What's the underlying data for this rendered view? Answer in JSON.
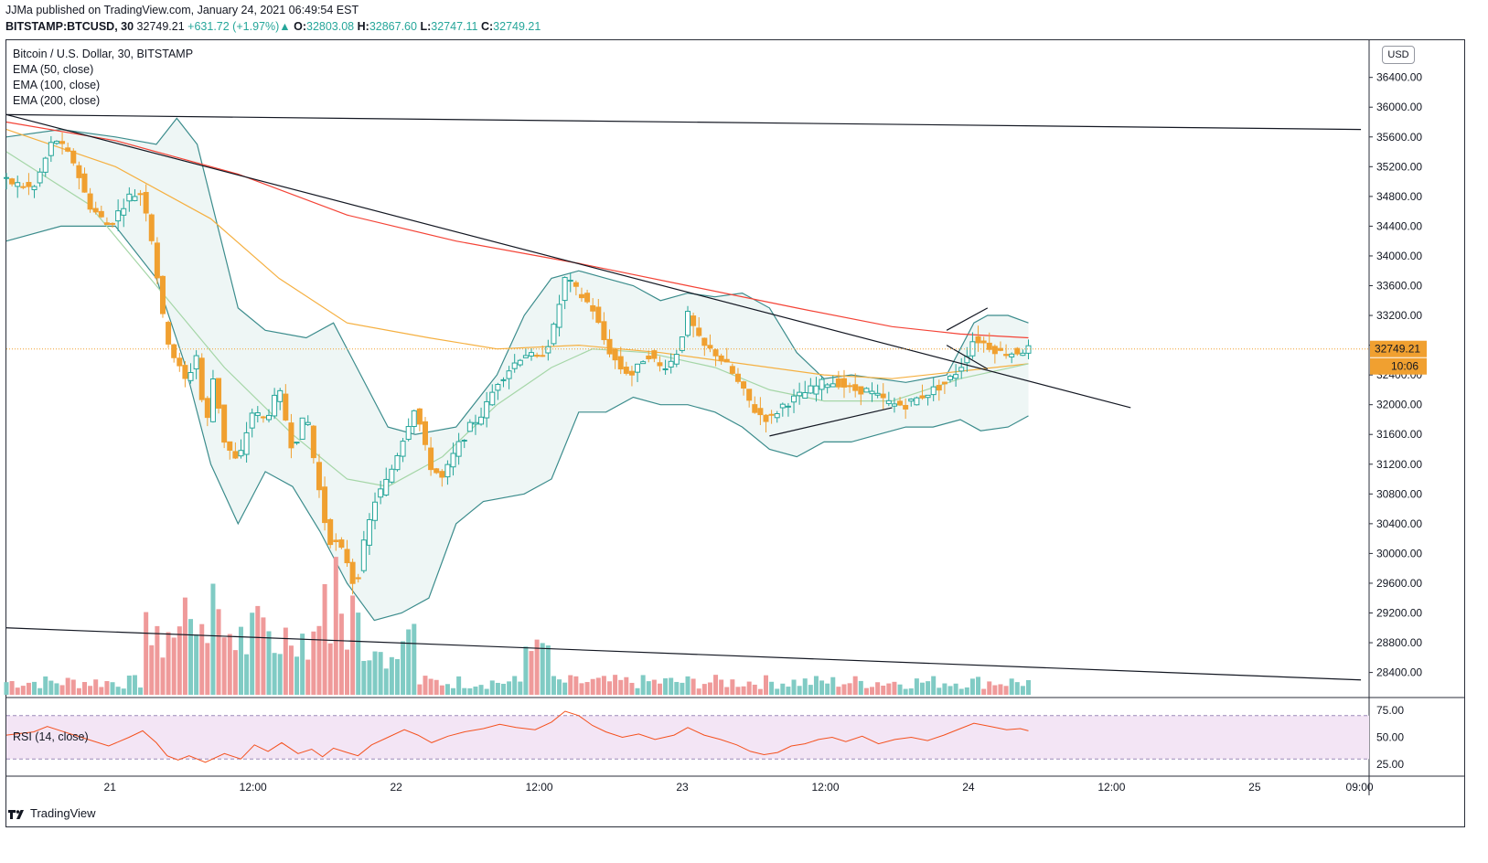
{
  "header": {
    "published": "JJMa published on TradingView.com, January 24, 2021 06:49:54 EST",
    "symbol": "BITSTAMP:BTCUSD, 30",
    "last": "32749.21",
    "change": "+631.72 (+1.97%)",
    "o_label": "O:",
    "o": "32803.08",
    "h_label": "H:",
    "h": "32867.60",
    "l_label": "L:",
    "l": "32747.11",
    "c_label": "C:",
    "c": "32749.21"
  },
  "legend": {
    "title": "Bitcoin / U.S. Dollar, 30, BITSTAMP",
    "ema50": "EMA (50, close)",
    "ema100": "EMA (100, close)",
    "ema200": "EMA (200, close)",
    "rsi": "RSI (14, close)"
  },
  "currency": "USD",
  "price_tag": "32749.21",
  "countdown": "10:06",
  "footer": {
    "brand": "TradingView"
  },
  "colors": {
    "bull": "#26a69a",
    "bear": "#f0a030",
    "ema200": "#f44336",
    "ema100": "#f5b041",
    "ema50": "#a5d6a7",
    "bands": "#3b8c8c",
    "rsi_line": "#f4511e",
    "rsi_fill": "#f3e5f5"
  },
  "chart_data": {
    "type": "candlestick",
    "symbol": "BITSTAMP:BTCUSD",
    "interval": "30",
    "y_ticks": [
      "36400.00",
      "36000.00",
      "35600.00",
      "35200.00",
      "34800.00",
      "34400.00",
      "34000.00",
      "33600.00",
      "33200.00",
      "32800.00",
      "32400.00",
      "32000.00",
      "31600.00",
      "31200.00",
      "30800.00",
      "30400.00",
      "30000.00",
      "29600.00",
      "29200.00",
      "28800.00",
      "28400.00"
    ],
    "ylim": [
      28100,
      36900
    ],
    "x_ticks": [
      {
        "label": "21",
        "t": 0.076
      },
      {
        "label": "12:00",
        "t": 0.181
      },
      {
        "label": "22",
        "t": 0.286
      },
      {
        "label": "12:00",
        "t": 0.391
      },
      {
        "label": "23",
        "t": 0.496
      },
      {
        "label": "12:00",
        "t": 0.601
      },
      {
        "label": "24",
        "t": 0.706
      },
      {
        "label": "12:00",
        "t": 0.811
      },
      {
        "label": "25",
        "t": 0.916
      },
      {
        "label": "09:00",
        "t": 0.993
      }
    ],
    "price_path": [
      [
        0.0,
        35000
      ],
      [
        0.02,
        34900
      ],
      [
        0.035,
        35600
      ],
      [
        0.05,
        35250
      ],
      [
        0.06,
        34700
      ],
      [
        0.075,
        34400
      ],
      [
        0.09,
        34800
      ],
      [
        0.1,
        34850
      ],
      [
        0.108,
        34100
      ],
      [
        0.116,
        33000
      ],
      [
        0.124,
        32600
      ],
      [
        0.132,
        32300
      ],
      [
        0.14,
        32700
      ],
      [
        0.146,
        31600
      ],
      [
        0.152,
        32400
      ],
      [
        0.16,
        31500
      ],
      [
        0.17,
        31200
      ],
      [
        0.18,
        31900
      ],
      [
        0.19,
        31800
      ],
      [
        0.2,
        32200
      ],
      [
        0.21,
        31400
      ],
      [
        0.22,
        31900
      ],
      [
        0.228,
        31000
      ],
      [
        0.236,
        30200
      ],
      [
        0.244,
        30100
      ],
      [
        0.25,
        29900
      ],
      [
        0.256,
        29500
      ],
      [
        0.262,
        30100
      ],
      [
        0.27,
        30700
      ],
      [
        0.28,
        31000
      ],
      [
        0.29,
        31500
      ],
      [
        0.3,
        32000
      ],
      [
        0.31,
        31200
      ],
      [
        0.32,
        31000
      ],
      [
        0.33,
        31400
      ],
      [
        0.34,
        31700
      ],
      [
        0.35,
        31900
      ],
      [
        0.36,
        32300
      ],
      [
        0.37,
        32500
      ],
      [
        0.38,
        32700
      ],
      [
        0.39,
        32600
      ],
      [
        0.4,
        32900
      ],
      [
        0.41,
        33700
      ],
      [
        0.42,
        33500
      ],
      [
        0.43,
        33300
      ],
      [
        0.44,
        32800
      ],
      [
        0.45,
        32500
      ],
      [
        0.46,
        32400
      ],
      [
        0.47,
        32700
      ],
      [
        0.48,
        32500
      ],
      [
        0.49,
        32600
      ],
      [
        0.5,
        33200
      ],
      [
        0.51,
        32800
      ],
      [
        0.52,
        32700
      ],
      [
        0.53,
        32500
      ],
      [
        0.54,
        32200
      ],
      [
        0.55,
        31900
      ],
      [
        0.56,
        31800
      ],
      [
        0.57,
        32000
      ],
      [
        0.58,
        32100
      ],
      [
        0.59,
        32200
      ],
      [
        0.6,
        32300
      ],
      [
        0.61,
        32300
      ],
      [
        0.62,
        32200
      ],
      [
        0.63,
        32200
      ],
      [
        0.64,
        32100
      ],
      [
        0.65,
        32000
      ],
      [
        0.66,
        32000
      ],
      [
        0.67,
        32100
      ],
      [
        0.68,
        32200
      ],
      [
        0.69,
        32300
      ],
      [
        0.7,
        32500
      ],
      [
        0.71,
        32900
      ],
      [
        0.72,
        32800
      ],
      [
        0.73,
        32700
      ],
      [
        0.74,
        32700
      ],
      [
        0.75,
        32750
      ]
    ],
    "ema200": [
      [
        0.0,
        35800
      ],
      [
        0.08,
        35550
      ],
      [
        0.17,
        35100
      ],
      [
        0.25,
        34550
      ],
      [
        0.33,
        34200
      ],
      [
        0.42,
        33900
      ],
      [
        0.5,
        33600
      ],
      [
        0.58,
        33300
      ],
      [
        0.65,
        33050
      ],
      [
        0.7,
        32950
      ],
      [
        0.75,
        32900
      ]
    ],
    "ema100": [
      [
        0.0,
        35700
      ],
      [
        0.08,
        35200
      ],
      [
        0.15,
        34500
      ],
      [
        0.2,
        33700
      ],
      [
        0.25,
        33100
      ],
      [
        0.31,
        32900
      ],
      [
        0.36,
        32750
      ],
      [
        0.42,
        32800
      ],
      [
        0.48,
        32700
      ],
      [
        0.54,
        32550
      ],
      [
        0.6,
        32400
      ],
      [
        0.65,
        32350
      ],
      [
        0.7,
        32450
      ],
      [
        0.75,
        32550
      ]
    ],
    "ema50": [
      [
        0.0,
        35400
      ],
      [
        0.06,
        34700
      ],
      [
        0.11,
        33600
      ],
      [
        0.16,
        32500
      ],
      [
        0.21,
        31600
      ],
      [
        0.25,
        31000
      ],
      [
        0.28,
        30900
      ],
      [
        0.32,
        31300
      ],
      [
        0.36,
        32000
      ],
      [
        0.4,
        32500
      ],
      [
        0.43,
        32750
      ],
      [
        0.47,
        32700
      ],
      [
        0.52,
        32500
      ],
      [
        0.56,
        32200
      ],
      [
        0.6,
        32050
      ],
      [
        0.65,
        32050
      ],
      [
        0.7,
        32350
      ],
      [
        0.75,
        32550
      ]
    ],
    "upper_band": [
      [
        0.0,
        35600
      ],
      [
        0.04,
        35700
      ],
      [
        0.08,
        35600
      ],
      [
        0.11,
        35500
      ],
      [
        0.125,
        35850
      ],
      [
        0.14,
        35500
      ],
      [
        0.17,
        33300
      ],
      [
        0.19,
        33000
      ],
      [
        0.22,
        32900
      ],
      [
        0.24,
        33100
      ],
      [
        0.26,
        32400
      ],
      [
        0.28,
        31700
      ],
      [
        0.3,
        31600
      ],
      [
        0.33,
        31700
      ],
      [
        0.36,
        32400
      ],
      [
        0.38,
        33200
      ],
      [
        0.4,
        33700
      ],
      [
        0.42,
        33800
      ],
      [
        0.44,
        33700
      ],
      [
        0.46,
        33600
      ],
      [
        0.48,
        33400
      ],
      [
        0.5,
        33500
      ],
      [
        0.52,
        33450
      ],
      [
        0.54,
        33500
      ],
      [
        0.56,
        33300
      ],
      [
        0.58,
        32700
      ],
      [
        0.6,
        32350
      ],
      [
        0.62,
        32400
      ],
      [
        0.64,
        32350
      ],
      [
        0.66,
        32300
      ],
      [
        0.69,
        32400
      ],
      [
        0.71,
        33100
      ],
      [
        0.72,
        33200
      ],
      [
        0.735,
        33200
      ],
      [
        0.75,
        33100
      ]
    ],
    "lower_band": [
      [
        0.0,
        34200
      ],
      [
        0.04,
        34400
      ],
      [
        0.08,
        34400
      ],
      [
        0.11,
        33700
      ],
      [
        0.13,
        32600
      ],
      [
        0.15,
        31200
      ],
      [
        0.17,
        30400
      ],
      [
        0.19,
        31100
      ],
      [
        0.21,
        30900
      ],
      [
        0.23,
        30300
      ],
      [
        0.25,
        29600
      ],
      [
        0.27,
        29100
      ],
      [
        0.29,
        29200
      ],
      [
        0.31,
        29400
      ],
      [
        0.33,
        30400
      ],
      [
        0.35,
        30700
      ],
      [
        0.38,
        30800
      ],
      [
        0.4,
        31000
      ],
      [
        0.42,
        31900
      ],
      [
        0.44,
        31900
      ],
      [
        0.46,
        32100
      ],
      [
        0.48,
        32000
      ],
      [
        0.5,
        32000
      ],
      [
        0.52,
        31900
      ],
      [
        0.54,
        31700
      ],
      [
        0.56,
        31400
      ],
      [
        0.58,
        31300
      ],
      [
        0.6,
        31500
      ],
      [
        0.62,
        31500
      ],
      [
        0.64,
        31600
      ],
      [
        0.66,
        31700
      ],
      [
        0.68,
        31700
      ],
      [
        0.7,
        31800
      ],
      [
        0.715,
        31650
      ],
      [
        0.735,
        31700
      ],
      [
        0.75,
        31850
      ]
    ],
    "trendlines": [
      {
        "from": [
          0.0,
          35900
        ],
        "to": [
          0.994,
          35700
        ]
      },
      {
        "from": [
          0.0,
          35900
        ],
        "to": [
          0.825,
          31960
        ]
      },
      {
        "from": [
          0.0,
          29000
        ],
        "to": [
          0.994,
          28300
        ]
      },
      {
        "from": [
          0.56,
          31580
        ],
        "to": [
          0.65,
          31960
        ]
      },
      {
        "from": [
          0.69,
          33000
        ],
        "to": [
          0.72,
          33300
        ]
      },
      {
        "from": [
          0.69,
          32800
        ],
        "to": [
          0.72,
          32480
        ]
      }
    ],
    "volume": {
      "max": 1.0
    },
    "rsi": {
      "levels": [
        75,
        50,
        25
      ],
      "band": [
        30,
        70
      ],
      "values": [
        [
          0.0,
          52
        ],
        [
          0.02,
          55
        ],
        [
          0.03,
          60
        ],
        [
          0.045,
          54
        ],
        [
          0.06,
          48
        ],
        [
          0.075,
          42
        ],
        [
          0.09,
          50
        ],
        [
          0.1,
          56
        ],
        [
          0.11,
          45
        ],
        [
          0.118,
          33
        ],
        [
          0.126,
          29
        ],
        [
          0.134,
          33
        ],
        [
          0.146,
          27
        ],
        [
          0.16,
          35
        ],
        [
          0.172,
          30
        ],
        [
          0.182,
          43
        ],
        [
          0.192,
          37
        ],
        [
          0.202,
          45
        ],
        [
          0.214,
          35
        ],
        [
          0.224,
          39
        ],
        [
          0.232,
          32
        ],
        [
          0.24,
          40
        ],
        [
          0.25,
          36
        ],
        [
          0.258,
          33
        ],
        [
          0.268,
          43
        ],
        [
          0.28,
          50
        ],
        [
          0.292,
          57
        ],
        [
          0.302,
          52
        ],
        [
          0.312,
          45
        ],
        [
          0.324,
          51
        ],
        [
          0.336,
          55
        ],
        [
          0.35,
          58
        ],
        [
          0.362,
          62
        ],
        [
          0.374,
          59
        ],
        [
          0.388,
          57
        ],
        [
          0.4,
          64
        ],
        [
          0.41,
          74
        ],
        [
          0.42,
          70
        ],
        [
          0.43,
          61
        ],
        [
          0.44,
          55
        ],
        [
          0.452,
          50
        ],
        [
          0.464,
          53
        ],
        [
          0.476,
          48
        ],
        [
          0.49,
          52
        ],
        [
          0.5,
          59
        ],
        [
          0.512,
          52
        ],
        [
          0.524,
          48
        ],
        [
          0.536,
          43
        ],
        [
          0.546,
          37
        ],
        [
          0.556,
          34
        ],
        [
          0.566,
          36
        ],
        [
          0.576,
          42
        ],
        [
          0.586,
          44
        ],
        [
          0.596,
          48
        ],
        [
          0.606,
          50
        ],
        [
          0.616,
          46
        ],
        [
          0.628,
          51
        ],
        [
          0.64,
          44
        ],
        [
          0.652,
          48
        ],
        [
          0.664,
          50
        ],
        [
          0.676,
          47
        ],
        [
          0.688,
          52
        ],
        [
          0.7,
          58
        ],
        [
          0.71,
          63
        ],
        [
          0.722,
          60
        ],
        [
          0.734,
          57
        ],
        [
          0.744,
          58
        ],
        [
          0.75,
          56
        ]
      ]
    }
  }
}
